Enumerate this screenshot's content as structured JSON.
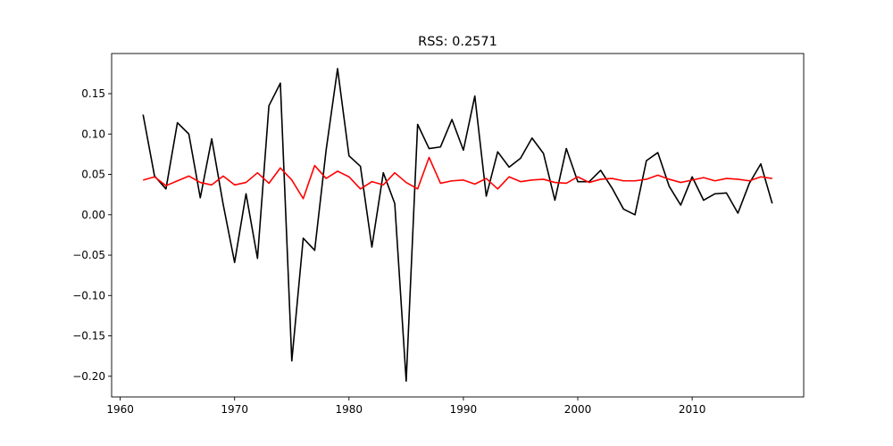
{
  "chart_data": {
    "type": "line",
    "title": "RSS: 0.2571",
    "xlabel": "",
    "ylabel": "",
    "xlim": [
      1959.25,
      2019.75
    ],
    "ylim": [
      -0.2256,
      0.1997
    ],
    "xticks": [
      1960,
      1970,
      1980,
      1990,
      2000,
      2010
    ],
    "xtick_labels": [
      "1960",
      "1970",
      "1980",
      "1990",
      "2000",
      "2010"
    ],
    "yticks": [
      -0.2,
      -0.15,
      -0.1,
      -0.05,
      0.0,
      0.05,
      0.1,
      0.15
    ],
    "ytick_labels": [
      "−0.20",
      "−0.15",
      "−0.10",
      "−0.05",
      "0.00",
      "0.05",
      "0.10",
      "0.15"
    ],
    "grid": false,
    "x": [
      1962,
      1963,
      1964,
      1965,
      1966,
      1967,
      1968,
      1969,
      1970,
      1971,
      1972,
      1973,
      1974,
      1975,
      1976,
      1977,
      1978,
      1979,
      1980,
      1981,
      1982,
      1983,
      1984,
      1985,
      1986,
      1987,
      1988,
      1989,
      1990,
      1991,
      1992,
      1993,
      1994,
      1995,
      1996,
      1997,
      1998,
      1999,
      2000,
      2001,
      2002,
      2003,
      2004,
      2005,
      2006,
      2007,
      2008,
      2009,
      2010,
      2011,
      2012,
      2013,
      2014,
      2015,
      2016,
      2017
    ],
    "series": [
      {
        "color": "#000000",
        "values": [
          0.124,
          0.048,
          0.032,
          0.114,
          0.1,
          0.021,
          0.094,
          0.013,
          -0.059,
          0.026,
          -0.054,
          0.135,
          0.163,
          -0.181,
          -0.029,
          -0.044,
          0.08,
          0.181,
          0.073,
          0.06,
          -0.04,
          0.052,
          0.014,
          -0.206,
          0.112,
          0.082,
          0.084,
          0.118,
          0.08,
          0.147,
          0.023,
          0.078,
          0.059,
          0.07,
          0.095,
          0.076,
          0.018,
          0.082,
          0.041,
          0.041,
          0.055,
          0.033,
          0.007,
          0.0,
          0.067,
          0.077,
          0.035,
          0.012,
          0.047,
          0.018,
          0.026,
          0.027,
          0.002,
          0.039,
          0.063,
          0.014
        ]
      },
      {
        "color": "#ff0000",
        "values": [
          0.043,
          0.047,
          0.036,
          0.042,
          0.048,
          0.04,
          0.037,
          0.048,
          0.037,
          0.04,
          0.052,
          0.039,
          0.058,
          0.043,
          0.02,
          0.061,
          0.045,
          0.054,
          0.047,
          0.032,
          0.041,
          0.037,
          0.052,
          0.04,
          0.032,
          0.071,
          0.039,
          0.042,
          0.043,
          0.038,
          0.045,
          0.032,
          0.047,
          0.041,
          0.043,
          0.044,
          0.04,
          0.039,
          0.047,
          0.04,
          0.044,
          0.045,
          0.042,
          0.042,
          0.044,
          0.049,
          0.044,
          0.04,
          0.043,
          0.046,
          0.042,
          0.045,
          0.044,
          0.042,
          0.047,
          0.045
        ]
      }
    ]
  }
}
